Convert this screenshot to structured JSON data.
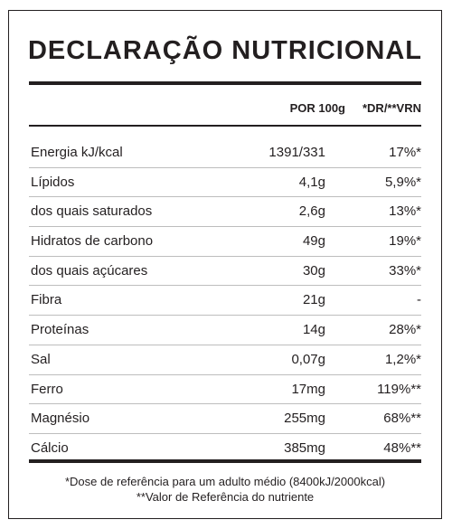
{
  "title": "DECLARAÇÃO NUTRICIONAL",
  "headers": {
    "per100": "POR 100g",
    "dr": "*DR/**VRN"
  },
  "rows": [
    {
      "name": "Energia  kJ/kcal",
      "value": "1391/331",
      "pct": "17%*"
    },
    {
      "name": "Lípidos",
      "value": "4,1g",
      "pct": "5,9%*"
    },
    {
      "name": "dos quais saturados",
      "value": "2,6g",
      "pct": "13%*"
    },
    {
      "name": "Hidratos de carbono",
      "value": "49g",
      "pct": "19%*"
    },
    {
      "name": "dos quais açúcares",
      "value": "30g",
      "pct": "33%*"
    },
    {
      "name": "Fibra",
      "value": "21g",
      "pct": "-"
    },
    {
      "name": "Proteínas",
      "value": "14g",
      "pct": "28%*"
    },
    {
      "name": "Sal",
      "value": "0,07g",
      "pct": "1,2%*"
    },
    {
      "name": "Ferro",
      "value": "17mg",
      "pct": "119%**"
    },
    {
      "name": "Magnésio",
      "value": "255mg",
      "pct": "68%**"
    },
    {
      "name": "Cálcio",
      "value": "385mg",
      "pct": "48%**"
    }
  ],
  "footnotes": {
    "dr": "*Dose de referência para um adulto médio (8400kJ/2000kcal)",
    "vrn": "**Valor de Referência do nutriente"
  }
}
